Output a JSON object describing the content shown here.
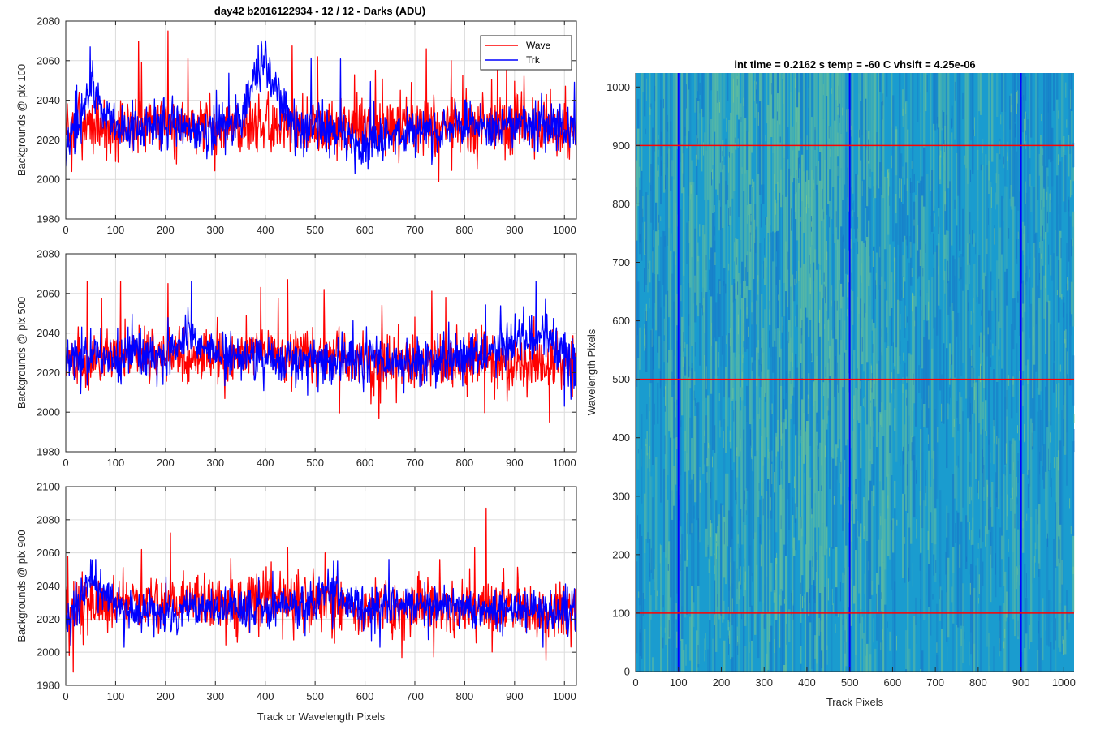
{
  "figure": {
    "suptitle": "day42 b2016122934 - 12 / 12 - Darks (ADU)",
    "heatmap_title": "int time = 0.2162 s    temp = -60 C    vhsift = 4.25e-06"
  },
  "colors": {
    "wave": "#ff0000",
    "trk": "#0000ff",
    "grid": "#dcdcdc",
    "axis": "#262626",
    "heat_base": "#1a9ccf",
    "heat_dark": "#1673c7",
    "heat_bright": "#7cc98c"
  },
  "chart_data": [
    {
      "type": "line",
      "ylabel": "Backgrounds @ pix 100",
      "xlim": [
        0,
        1024
      ],
      "ylim": [
        1980,
        2080
      ],
      "xticks": [
        0,
        100,
        200,
        300,
        400,
        500,
        600,
        700,
        800,
        900,
        1000
      ],
      "yticks": [
        1980,
        2000,
        2020,
        2040,
        2060,
        2080
      ],
      "grid": true,
      "legend": {
        "location": "top-right",
        "entries": [
          "Wave",
          "Trk"
        ]
      },
      "series": [
        {
          "name": "Wave",
          "color": "#ff0000",
          "mean": 2026,
          "spread": 7,
          "min": 1999,
          "max": 2075,
          "anchors": [
            [
              0,
              2027
            ],
            [
              200,
              2028
            ],
            [
              400,
              2026
            ],
            [
              600,
              2025
            ],
            [
              800,
              2027
            ],
            [
              1024,
              2025
            ]
          ],
          "spikes": [
            [
              205,
              2075
            ],
            [
              152,
              2059
            ],
            [
              245,
              2061
            ],
            [
              505,
              2062
            ],
            [
              723,
              2066
            ],
            [
              773,
              2060
            ],
            [
              748,
              1999
            ],
            [
              12,
              2004
            ]
          ]
        },
        {
          "name": "Trk",
          "color": "#0000ff",
          "mean": 2027,
          "spread": 6,
          "min": 2002,
          "max": 2070,
          "anchors": [
            [
              0,
              2018
            ],
            [
              30,
              2027
            ],
            [
              50,
              2048
            ],
            [
              70,
              2036
            ],
            [
              120,
              2025
            ],
            [
              200,
              2027
            ],
            [
              300,
              2024
            ],
            [
              350,
              2030
            ],
            [
              380,
              2053
            ],
            [
              400,
              2055
            ],
            [
              420,
              2048
            ],
            [
              450,
              2026
            ],
            [
              550,
              2025
            ],
            [
              600,
              2018
            ],
            [
              700,
              2024
            ],
            [
              800,
              2028
            ],
            [
              900,
              2028
            ],
            [
              1024,
              2025
            ]
          ],
          "spikes": [
            [
              392,
              2070
            ],
            [
              54,
              2060
            ],
            [
              302,
              2045
            ],
            [
              580,
              2003
            ]
          ]
        }
      ]
    },
    {
      "type": "line",
      "ylabel": "Backgrounds @ pix 500",
      "xlim": [
        0,
        1024
      ],
      "ylim": [
        1980,
        2080
      ],
      "xticks": [
        0,
        100,
        200,
        300,
        400,
        500,
        600,
        700,
        800,
        900,
        1000
      ],
      "yticks": [
        1980,
        2000,
        2020,
        2040,
        2060,
        2080
      ],
      "grid": true,
      "series": [
        {
          "name": "Wave",
          "color": "#ff0000",
          "mean": 2027,
          "spread": 7,
          "min": 1995,
          "max": 2067,
          "anchors": [
            [
              0,
              2026
            ],
            [
              100,
              2029
            ],
            [
              200,
              2027
            ],
            [
              300,
              2028
            ],
            [
              400,
              2031
            ],
            [
              500,
              2030
            ],
            [
              600,
              2026
            ],
            [
              700,
              2025
            ],
            [
              800,
              2026
            ],
            [
              900,
              2026
            ],
            [
              1024,
              2024
            ]
          ],
          "spikes": [
            [
              43,
              2066
            ],
            [
              110,
              2066
            ],
            [
              205,
              2065
            ],
            [
              445,
              2067
            ],
            [
              518,
              2062
            ],
            [
              634,
              2054
            ],
            [
              762,
              2058
            ],
            [
              970,
              1995
            ],
            [
              628,
              1997
            ],
            [
              700,
              2048
            ]
          ]
        },
        {
          "name": "Trk",
          "color": "#0000ff",
          "mean": 2027,
          "spread": 6,
          "min": 2000,
          "max": 2066,
          "anchors": [
            [
              0,
              2028
            ],
            [
              100,
              2027
            ],
            [
              200,
              2028
            ],
            [
              250,
              2040
            ],
            [
              270,
              2030
            ],
            [
              400,
              2027
            ],
            [
              600,
              2025
            ],
            [
              800,
              2027
            ],
            [
              960,
              2040
            ],
            [
              1000,
              2030
            ],
            [
              1024,
              2020
            ]
          ],
          "spikes": [
            [
              252,
              2066
            ],
            [
              962,
              2057
            ],
            [
              32,
              2043
            ],
            [
              1000,
              2003
            ]
          ]
        }
      ]
    },
    {
      "type": "line",
      "ylabel": "Backgrounds @ pix 900",
      "xlabel": "Track or Wavelength Pixels",
      "xlim": [
        0,
        1024
      ],
      "ylim": [
        1980,
        2100
      ],
      "xticks": [
        0,
        100,
        200,
        300,
        400,
        500,
        600,
        700,
        800,
        900,
        1000
      ],
      "yticks": [
        1980,
        2000,
        2020,
        2040,
        2060,
        2080,
        2100
      ],
      "grid": true,
      "series": [
        {
          "name": "Wave",
          "color": "#ff0000",
          "mean": 2029,
          "spread": 8,
          "min": 1988,
          "max": 2087,
          "anchors": [
            [
              0,
              2026
            ],
            [
              100,
              2029
            ],
            [
              200,
              2031
            ],
            [
              300,
              2030
            ],
            [
              400,
              2032
            ],
            [
              500,
              2031
            ],
            [
              600,
              2026
            ],
            [
              700,
              2028
            ],
            [
              800,
              2027
            ],
            [
              900,
              2026
            ],
            [
              1024,
              2025
            ]
          ],
          "spikes": [
            [
              843,
              2087
            ],
            [
              210,
              2072
            ],
            [
              820,
              2063
            ],
            [
              445,
              2063
            ],
            [
              520,
              2060
            ],
            [
              15,
              1988
            ],
            [
              963,
              1995
            ],
            [
              152,
              2062
            ]
          ]
        },
        {
          "name": "Trk",
          "color": "#0000ff",
          "mean": 2027,
          "spread": 6,
          "min": 2003,
          "max": 2056,
          "anchors": [
            [
              0,
              2020
            ],
            [
              30,
              2030
            ],
            [
              50,
              2045
            ],
            [
              70,
              2038
            ],
            [
              120,
              2025
            ],
            [
              200,
              2025
            ],
            [
              300,
              2027
            ],
            [
              400,
              2026
            ],
            [
              500,
              2030
            ],
            [
              540,
              2042
            ],
            [
              560,
              2030
            ],
            [
              600,
              2025
            ],
            [
              700,
              2030
            ],
            [
              800,
              2026
            ],
            [
              900,
              2027
            ],
            [
              1024,
              2024
            ]
          ],
          "spikes": [
            [
              60,
              2056
            ],
            [
              545,
              2055
            ]
          ]
        }
      ]
    },
    {
      "type": "heatmap",
      "xlabel": "Track Pixels",
      "ylabel": "Wavelength Pixels",
      "xlim": [
        0,
        1024
      ],
      "ylim": [
        0,
        1024
      ],
      "xticks": [
        0,
        100,
        200,
        300,
        400,
        500,
        600,
        700,
        800,
        900,
        1000
      ],
      "yticks": [
        0,
        100,
        200,
        300,
        400,
        500,
        600,
        700,
        800,
        900,
        1000
      ],
      "vertical_lines": {
        "at": [
          100,
          500,
          900
        ],
        "color": "#0000ff"
      },
      "horizontal_lines": {
        "at": [
          100,
          500,
          900
        ],
        "color": "#ff0000"
      }
    }
  ]
}
